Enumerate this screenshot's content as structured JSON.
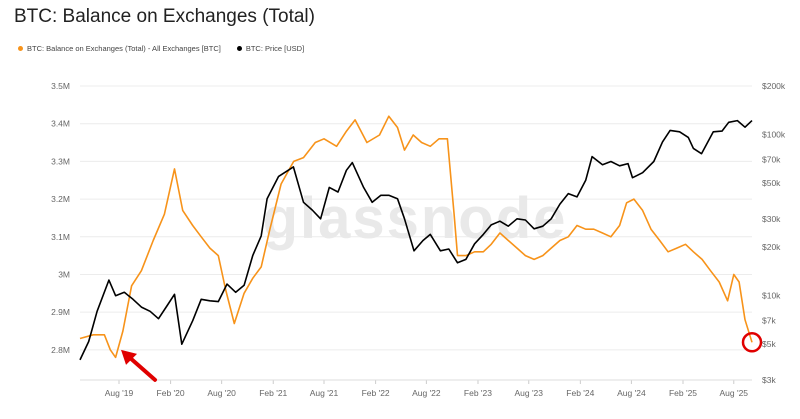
{
  "title": "BTC: Balance on Exchanges (Total)",
  "legend": [
    {
      "label": "BTC: Balance on Exchanges (Total) - All Exchanges [BTC]",
      "color": "#f7931a"
    },
    {
      "label": "BTC: Price [USD]",
      "color": "#000000"
    }
  ],
  "watermark": "glassnode",
  "colors": {
    "balance": "#f7931a",
    "price": "#000000",
    "highlight": "#e00000",
    "grid": "#ececec"
  },
  "chart_data": {
    "type": "line",
    "title": "BTC: Balance on Exchanges (Total)",
    "grid": true,
    "legend_placement": "top-left",
    "x_ticks": [
      "Aug '19",
      "Feb '20",
      "Aug '20",
      "Feb '21",
      "Aug '21",
      "Feb '22",
      "Aug '22",
      "Feb '23",
      "Aug '23",
      "Feb '24",
      "Aug '24",
      "Feb '25",
      "Aug '25"
    ],
    "x_range": [
      "2019-03-15",
      "2025-10-05"
    ],
    "y_left": {
      "label": "",
      "ylim": [
        2.72,
        3.5
      ],
      "unit": "M",
      "ticks": [
        "2.8M",
        "2.9M",
        "3M",
        "3.1M",
        "3.2M",
        "3.3M",
        "3.4M",
        "3.5M"
      ]
    },
    "y_right": {
      "label": "",
      "scale": "log",
      "ylim": [
        3000,
        200000
      ],
      "ticks": [
        "$3k",
        "$5k",
        "$7k",
        "$10k",
        "$20k",
        "$30k",
        "$50k",
        "$70k",
        "$100k",
        "$200k"
      ]
    },
    "series": [
      {
        "name": "BTC: Balance on Exchanges (Total) - All Exchanges [BTC]",
        "axis": "left",
        "x": [
          "2019-03-15",
          "2019-05-01",
          "2019-06-10",
          "2019-07-01",
          "2019-07-20",
          "2019-08-15",
          "2019-09-15",
          "2019-10-20",
          "2019-12-01",
          "2020-01-10",
          "2020-02-15",
          "2020-03-15",
          "2020-04-20",
          "2020-05-20",
          "2020-06-20",
          "2020-07-20",
          "2020-08-15",
          "2020-09-15",
          "2020-10-20",
          "2020-11-20",
          "2020-12-20",
          "2021-01-20",
          "2021-03-01",
          "2021-04-15",
          "2021-05-20",
          "2021-07-01",
          "2021-08-01",
          "2021-09-15",
          "2021-10-20",
          "2021-11-20",
          "2022-01-01",
          "2022-02-15",
          "2022-03-20",
          "2022-04-20",
          "2022-05-15",
          "2022-06-15",
          "2022-07-15",
          "2022-08-15",
          "2022-09-15",
          "2022-10-15",
          "2022-11-08",
          "2022-11-20",
          "2022-12-20",
          "2023-01-20",
          "2023-02-20",
          "2023-03-20",
          "2023-04-20",
          "2023-05-20",
          "2023-06-20",
          "2023-07-20",
          "2023-08-20",
          "2023-09-20",
          "2023-10-20",
          "2023-11-20",
          "2023-12-20",
          "2024-01-20",
          "2024-02-20",
          "2024-03-20",
          "2024-04-20",
          "2024-05-20",
          "2024-06-20",
          "2024-07-15",
          "2024-08-10",
          "2024-09-10",
          "2024-10-10",
          "2024-11-10",
          "2024-12-10",
          "2025-01-10",
          "2025-02-10",
          "2025-03-10",
          "2025-04-10",
          "2025-05-10",
          "2025-06-10",
          "2025-07-10",
          "2025-08-01",
          "2025-08-20",
          "2025-09-10",
          "2025-10-05"
        ],
        "values": [
          2.83,
          2.84,
          2.84,
          2.8,
          2.78,
          2.85,
          2.97,
          3.01,
          3.09,
          3.16,
          3.28,
          3.17,
          3.13,
          3.1,
          3.07,
          3.05,
          2.96,
          2.87,
          2.95,
          2.99,
          3.02,
          3.12,
          3.24,
          3.3,
          3.31,
          3.35,
          3.36,
          3.34,
          3.38,
          3.41,
          3.35,
          3.37,
          3.42,
          3.39,
          3.33,
          3.37,
          3.35,
          3.34,
          3.36,
          3.36,
          3.16,
          3.05,
          3.05,
          3.06,
          3.06,
          3.08,
          3.11,
          3.09,
          3.07,
          3.05,
          3.04,
          3.05,
          3.07,
          3.09,
          3.1,
          3.13,
          3.12,
          3.12,
          3.11,
          3.1,
          3.13,
          3.19,
          3.2,
          3.17,
          3.12,
          3.09,
          3.06,
          3.07,
          3.08,
          3.06,
          3.04,
          3.01,
          2.98,
          2.93,
          3.0,
          2.98,
          2.88,
          2.82
        ]
      },
      {
        "name": "BTC: Price [USD]",
        "axis": "right",
        "x": [
          "2019-03-15",
          "2019-04-15",
          "2019-05-15",
          "2019-06-26",
          "2019-07-20",
          "2019-08-20",
          "2019-09-20",
          "2019-10-20",
          "2019-11-20",
          "2019-12-20",
          "2020-01-20",
          "2020-02-15",
          "2020-03-12",
          "2020-04-20",
          "2020-05-20",
          "2020-06-20",
          "2020-07-20",
          "2020-08-20",
          "2020-09-20",
          "2020-10-20",
          "2020-11-20",
          "2020-12-20",
          "2021-01-10",
          "2021-02-20",
          "2021-04-14",
          "2021-05-20",
          "2021-06-20",
          "2021-07-20",
          "2021-08-20",
          "2021-09-20",
          "2021-10-20",
          "2021-11-10",
          "2021-12-20",
          "2022-01-20",
          "2022-02-20",
          "2022-03-20",
          "2022-04-20",
          "2022-05-15",
          "2022-06-18",
          "2022-07-20",
          "2022-08-15",
          "2022-09-20",
          "2022-10-20",
          "2022-11-20",
          "2022-12-20",
          "2023-01-20",
          "2023-02-20",
          "2023-03-20",
          "2023-04-20",
          "2023-05-20",
          "2023-06-20",
          "2023-07-20",
          "2023-08-20",
          "2023-09-20",
          "2023-10-20",
          "2023-11-20",
          "2023-12-20",
          "2024-01-20",
          "2024-02-20",
          "2024-03-14",
          "2024-04-20",
          "2024-05-20",
          "2024-06-20",
          "2024-07-20",
          "2024-08-05",
          "2024-09-10",
          "2024-10-20",
          "2024-11-20",
          "2024-12-17",
          "2025-01-20",
          "2025-02-20",
          "2025-03-10",
          "2025-04-08",
          "2025-05-20",
          "2025-06-20",
          "2025-07-14",
          "2025-08-14",
          "2025-09-10",
          "2025-10-05"
        ],
        "values": [
          4000,
          5200,
          8000,
          12500,
          10000,
          10500,
          9500,
          8500,
          8000,
          7200,
          8700,
          10200,
          5000,
          7000,
          9500,
          9300,
          9200,
          11800,
          10500,
          11600,
          17800,
          23500,
          40000,
          55000,
          63000,
          38000,
          34000,
          30000,
          47000,
          44000,
          60000,
          67000,
          47000,
          38000,
          42000,
          42000,
          40000,
          30000,
          19000,
          22000,
          24000,
          19000,
          19500,
          16000,
          16800,
          21000,
          24000,
          27500,
          29000,
          27000,
          30000,
          29500,
          26000,
          27000,
          30000,
          37000,
          43000,
          41000,
          52000,
          73000,
          65000,
          68000,
          64000,
          66000,
          54000,
          58000,
          68000,
          90000,
          106000,
          104000,
          96000,
          82000,
          76000,
          104000,
          105000,
          119000,
          122000,
          111000,
          122000
        ]
      }
    ]
  }
}
